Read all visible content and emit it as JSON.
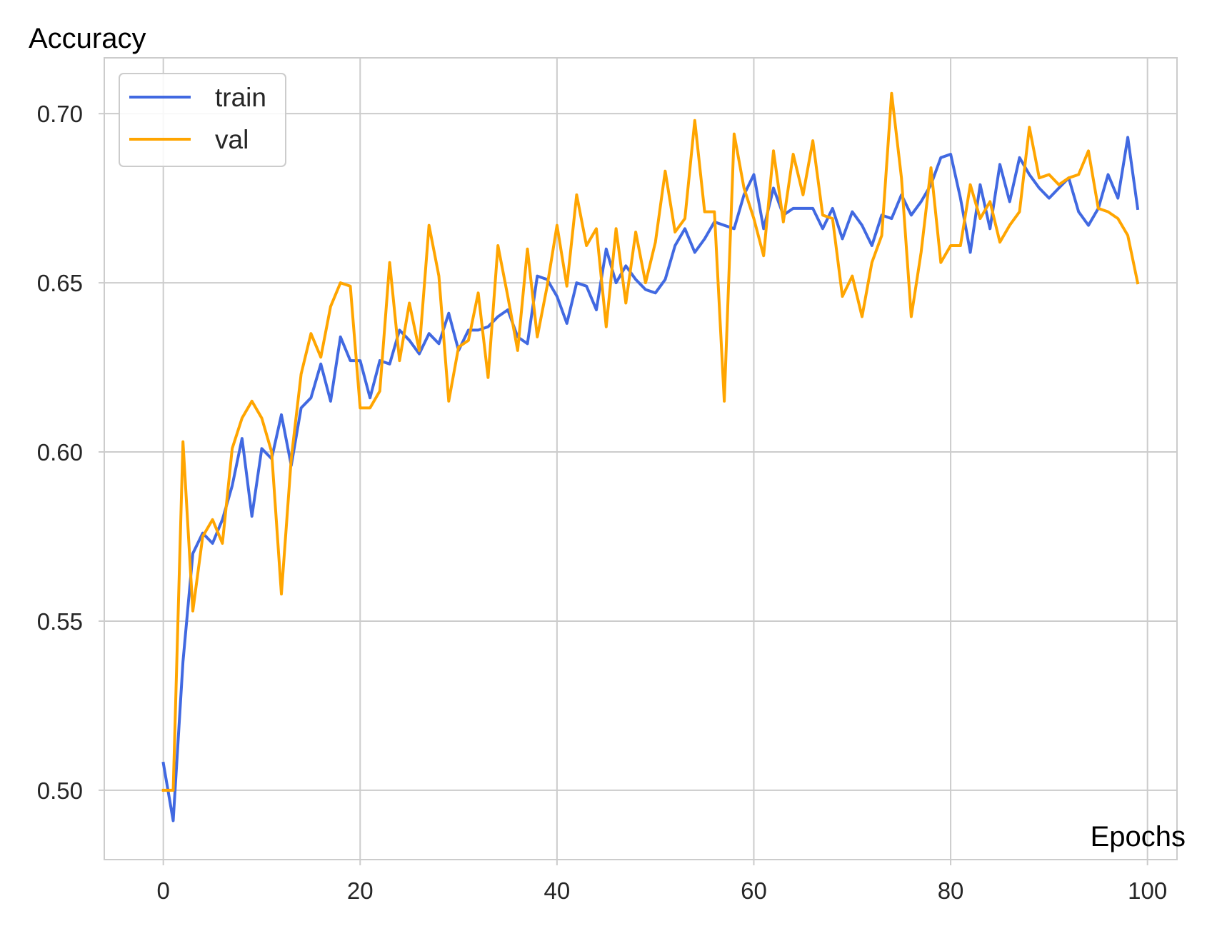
{
  "chart_data": {
    "type": "line",
    "xlabel": "Epochs",
    "ylabel": "Accuracy",
    "xlim": [
      -6,
      103
    ],
    "ylim": [
      0.4795,
      0.7165
    ],
    "x_ticks": [
      0,
      20,
      40,
      60,
      80,
      100
    ],
    "x_tick_labels": [
      "0",
      "20",
      "40",
      "60",
      "80",
      "100"
    ],
    "y_ticks": [
      0.5,
      0.55,
      0.6,
      0.65,
      0.7
    ],
    "y_tick_labels": [
      "0.50",
      "0.55",
      "0.60",
      "0.65",
      "0.70"
    ],
    "grid": true,
    "legend_position": "top-left",
    "x": [
      0,
      1,
      2,
      3,
      4,
      5,
      6,
      7,
      8,
      9,
      10,
      11,
      12,
      13,
      14,
      15,
      16,
      17,
      18,
      19,
      20,
      21,
      22,
      23,
      24,
      25,
      26,
      27,
      28,
      29,
      30,
      31,
      32,
      33,
      34,
      35,
      36,
      37,
      38,
      39,
      40,
      41,
      42,
      43,
      44,
      45,
      46,
      47,
      48,
      49,
      50,
      51,
      52,
      53,
      54,
      55,
      56,
      57,
      58,
      59,
      60,
      61,
      62,
      63,
      64,
      65,
      66,
      67,
      68,
      69,
      70,
      71,
      72,
      73,
      74,
      75,
      76,
      77,
      78,
      79,
      80,
      81,
      82,
      83,
      84,
      85,
      86,
      87,
      88,
      89,
      90,
      91,
      92,
      93,
      94,
      95,
      96,
      97,
      98,
      99
    ],
    "series": [
      {
        "name": "train",
        "color": "#4169e1",
        "values": [
          0.508,
          0.491,
          0.538,
          0.57,
          0.576,
          0.573,
          0.58,
          0.59,
          0.604,
          0.581,
          0.601,
          0.598,
          0.611,
          0.596,
          0.613,
          0.616,
          0.626,
          0.615,
          0.634,
          0.627,
          0.627,
          0.616,
          0.627,
          0.626,
          0.636,
          0.633,
          0.629,
          0.635,
          0.632,
          0.641,
          0.63,
          0.636,
          0.636,
          0.637,
          0.64,
          0.642,
          0.634,
          0.632,
          0.652,
          0.651,
          0.646,
          0.638,
          0.65,
          0.649,
          0.642,
          0.66,
          0.65,
          0.655,
          0.651,
          0.648,
          0.647,
          0.651,
          0.661,
          0.666,
          0.659,
          0.663,
          0.668,
          0.667,
          0.666,
          0.676,
          0.682,
          0.666,
          0.678,
          0.67,
          0.672,
          0.672,
          0.672,
          0.666,
          0.672,
          0.663,
          0.671,
          0.667,
          0.661,
          0.67,
          0.669,
          0.676,
          0.67,
          0.674,
          0.679,
          0.687,
          0.688,
          0.675,
          0.659,
          0.679,
          0.666,
          0.685,
          0.674,
          0.687,
          0.682,
          0.678,
          0.675,
          0.678,
          0.681,
          0.671,
          0.667,
          0.672,
          0.682,
          0.675,
          0.693,
          0.672
        ]
      },
      {
        "name": "val",
        "color": "#ffa500",
        "values": [
          0.5,
          0.5,
          0.603,
          0.553,
          0.575,
          0.58,
          0.573,
          0.601,
          0.61,
          0.615,
          0.61,
          0.6,
          0.558,
          0.598,
          0.623,
          0.635,
          0.628,
          0.643,
          0.65,
          0.649,
          0.613,
          0.613,
          0.618,
          0.656,
          0.627,
          0.644,
          0.63,
          0.667,
          0.652,
          0.615,
          0.631,
          0.633,
          0.647,
          0.622,
          0.661,
          0.646,
          0.63,
          0.66,
          0.634,
          0.649,
          0.667,
          0.649,
          0.676,
          0.661,
          0.666,
          0.637,
          0.666,
          0.644,
          0.665,
          0.65,
          0.662,
          0.683,
          0.665,
          0.669,
          0.698,
          0.671,
          0.671,
          0.615,
          0.694,
          0.678,
          0.669,
          0.658,
          0.689,
          0.668,
          0.688,
          0.676,
          0.692,
          0.67,
          0.669,
          0.646,
          0.652,
          0.64,
          0.656,
          0.664,
          0.706,
          0.681,
          0.64,
          0.659,
          0.684,
          0.656,
          0.661,
          0.661,
          0.679,
          0.669,
          0.674,
          0.662,
          0.667,
          0.671,
          0.696,
          0.681,
          0.682,
          0.679,
          0.681,
          0.682,
          0.689,
          0.672,
          0.671,
          0.669,
          0.664,
          0.65
        ]
      }
    ]
  }
}
